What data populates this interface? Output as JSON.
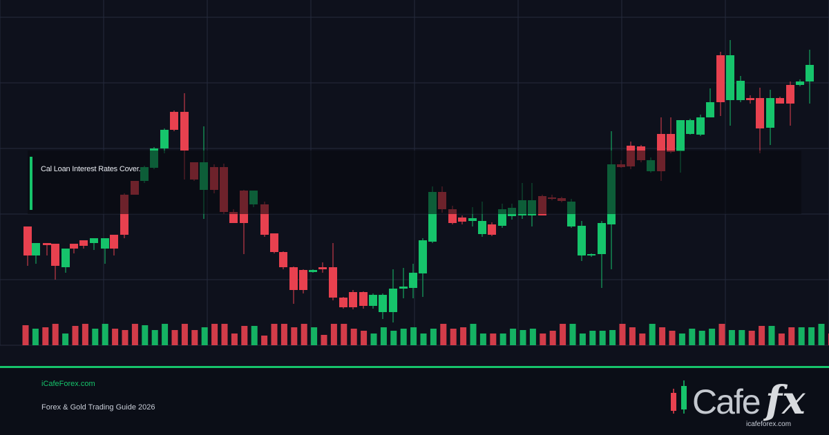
{
  "banner": {
    "text": "Cal Loan Interest Rates Cover."
  },
  "footer": {
    "site": "iCafeForex.com",
    "guide": "Forex & Gold Trading Guide 2026"
  },
  "logo": {
    "cafe": "Cafe",
    "fx": "fx",
    "url": "icafeforex.com"
  },
  "colors": {
    "up": "#16c46b",
    "down": "#e8414f",
    "background": "#0e111c",
    "grid": "#252a3d"
  },
  "chart_data": {
    "type": "candlestick",
    "grid": true,
    "volume": [
      [
        0,
        "d"
      ],
      [
        0,
        "u"
      ],
      [
        0,
        "d"
      ],
      [
        0,
        "d"
      ],
      [
        0,
        "u"
      ],
      [
        0,
        "d"
      ],
      [
        0,
        "u"
      ],
      [
        0,
        "u"
      ],
      [
        0,
        "u"
      ],
      [
        0,
        "d"
      ],
      [
        0,
        "u"
      ],
      [
        0,
        "u"
      ],
      [
        0,
        "u"
      ],
      [
        0,
        "d"
      ],
      [
        0,
        "u"
      ],
      [
        0,
        "u"
      ],
      [
        0,
        "u"
      ],
      [
        0,
        "d"
      ],
      [
        0,
        "u"
      ],
      [
        0,
        "d"
      ],
      [
        0,
        "u"
      ],
      [
        0,
        "d"
      ],
      [
        0,
        "d"
      ],
      [
        0,
        "d"
      ],
      [
        0,
        "d"
      ],
      [
        0,
        "d"
      ],
      [
        0,
        "d"
      ],
      [
        0,
        "d"
      ],
      [
        0,
        "d"
      ],
      [
        0,
        "u"
      ],
      [
        0,
        "d"
      ],
      [
        0,
        "d"
      ],
      [
        0,
        "d"
      ],
      [
        0,
        "d"
      ],
      [
        0,
        "u"
      ],
      [
        0,
        "u"
      ],
      [
        0,
        "u"
      ],
      [
        0,
        "u"
      ],
      [
        0,
        "u"
      ],
      [
        0,
        "u"
      ],
      [
        0,
        "u"
      ],
      [
        0,
        "u"
      ],
      [
        0,
        "u"
      ],
      [
        0,
        "u"
      ],
      [
        0,
        "d"
      ],
      [
        0,
        "d"
      ],
      [
        0,
        "u"
      ],
      [
        0,
        "u"
      ],
      [
        0,
        "d"
      ],
      [
        0,
        "u"
      ],
      [
        0,
        "u"
      ],
      [
        0,
        "u"
      ],
      [
        0,
        "u"
      ],
      [
        0,
        "u"
      ],
      [
        0,
        "d"
      ],
      [
        0,
        "d"
      ],
      [
        0,
        "d"
      ],
      [
        0,
        "u"
      ],
      [
        0,
        "u"
      ],
      [
        0,
        "u"
      ],
      [
        0,
        "d"
      ],
      [
        0,
        "u"
      ],
      [
        0,
        "u"
      ],
      [
        0,
        "d"
      ],
      [
        0,
        "u"
      ],
      [
        0,
        "d"
      ],
      [
        0,
        "d"
      ],
      [
        0,
        "d"
      ],
      [
        0,
        "u"
      ],
      [
        0,
        "d"
      ],
      [
        0,
        "u"
      ],
      [
        0,
        "u"
      ],
      [
        0,
        "u"
      ],
      [
        0,
        "u"
      ],
      [
        0,
        "u"
      ],
      [
        0,
        "u"
      ],
      [
        0,
        "d"
      ],
      [
        0,
        "u"
      ],
      [
        0,
        "d"
      ],
      [
        0,
        "d"
      ],
      [
        0,
        "u"
      ],
      [
        0,
        "u"
      ]
    ],
    "candles": [
      [
        40,
        0,
        370,
        385
      ],
      [
        52,
        0,
        352,
        382
      ],
      [
        68,
        0,
        353,
        370
      ],
      [
        80,
        0,
        385,
        405
      ],
      [
        95,
        0,
        385,
        395
      ],
      [
        107,
        0,
        357,
        367
      ],
      [
        121,
        0,
        350,
        360
      ],
      [
        136,
        0,
        345,
        362
      ],
      [
        152,
        0,
        360,
        382
      ],
      [
        165,
        0,
        340,
        370
      ],
      [
        180,
        0,
        280,
        345
      ],
      [
        195,
        0,
        262,
        282
      ],
      [
        209,
        0,
        240,
        265
      ],
      [
        223,
        0,
        213,
        245
      ],
      [
        238,
        0,
        186,
        222
      ],
      [
        252,
        0,
        160,
        190
      ],
      [
        267,
        0,
        135,
        260
      ],
      [
        281,
        0,
        235,
        262
      ],
      [
        295,
        0,
        183,
        317
      ],
      [
        310,
        0,
        238,
        280
      ],
      [
        324,
        0,
        237,
        310
      ],
      [
        338,
        0,
        303,
        323
      ],
      [
        353,
        0,
        275,
        368
      ],
      [
        367,
        0,
        276,
        300
      ],
      [
        383,
        0,
        292,
        343
      ],
      [
        397,
        0,
        338,
        367
      ],
      [
        410,
        0,
        364,
        390
      ],
      [
        425,
        0,
        386,
        440
      ],
      [
        439,
        0,
        390,
        425
      ],
      [
        453,
        0,
        390,
        395
      ],
      [
        467,
        0,
        380,
        395
      ],
      [
        482,
        0,
        352,
        435
      ],
      [
        497,
        0,
        430,
        447
      ],
      [
        511,
        0,
        420,
        448
      ],
      [
        526,
        0,
        422,
        447
      ],
      [
        540,
        0,
        425,
        447
      ],
      [
        554,
        0,
        425,
        462
      ],
      [
        569,
        0,
        390,
        467
      ],
      [
        584,
        0,
        388,
        432
      ],
      [
        598,
        0,
        382,
        432
      ],
      [
        612,
        0,
        345,
        430
      ],
      [
        626,
        0,
        270,
        352
      ],
      [
        640,
        0,
        270,
        308
      ],
      [
        655,
        0,
        298,
        325
      ],
      [
        669,
        0,
        312,
        325
      ],
      [
        684,
        0,
        300,
        328
      ],
      [
        698,
        0,
        292,
        343
      ],
      [
        712,
        0,
        322,
        342
      ],
      [
        727,
        0,
        295,
        330
      ],
      [
        741,
        0,
        295,
        318
      ],
      [
        756,
        0,
        265,
        317
      ],
      [
        770,
        0,
        265,
        328
      ],
      [
        785,
        0,
        282,
        312
      ],
      [
        799,
        0,
        282,
        290
      ],
      [
        813,
        0,
        285,
        293
      ],
      [
        827,
        0,
        288,
        330
      ],
      [
        842,
        0,
        320,
        378
      ],
      [
        856,
        0,
        367,
        372
      ],
      [
        871,
        0,
        320,
        417
      ],
      [
        885,
        0,
        190,
        390
      ],
      [
        899,
        0,
        232,
        243
      ],
      [
        913,
        0,
        205,
        245
      ],
      [
        928,
        0,
        210,
        235
      ],
      [
        942,
        0,
        228,
        250
      ],
      [
        957,
        0,
        170,
        262
      ],
      [
        971,
        0,
        170,
        222
      ],
      [
        985,
        0,
        175,
        250
      ],
      [
        999,
        0,
        172,
        195
      ],
      [
        1014,
        0,
        166,
        197
      ],
      [
        1028,
        0,
        128,
        170
      ],
      [
        1043,
        0,
        75,
        168
      ],
      [
        1057,
        0,
        58,
        182
      ],
      [
        1072,
        0,
        110,
        148
      ],
      [
        1086,
        0,
        138,
        150
      ],
      [
        1100,
        0,
        127,
        222
      ],
      [
        1115,
        0,
        130,
        210
      ],
      [
        1129,
        0,
        140,
        150
      ],
      [
        1144,
        0,
        118,
        182
      ],
      [
        1158,
        0,
        115,
        125
      ],
      [
        1172,
        0,
        72,
        150
      ]
    ]
  }
}
